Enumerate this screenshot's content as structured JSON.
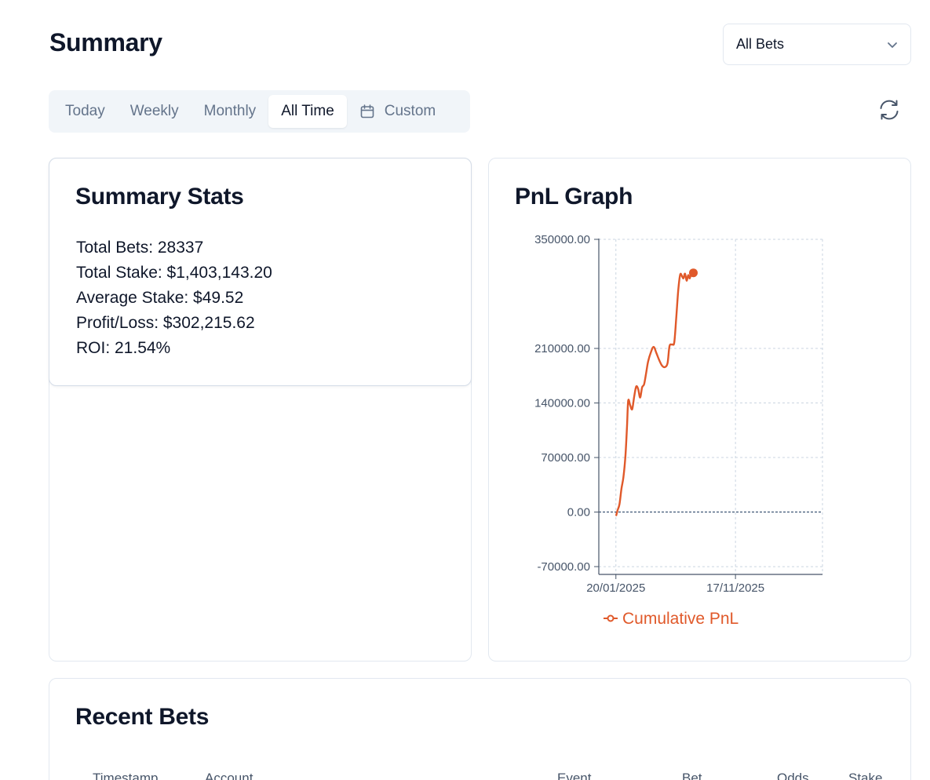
{
  "header": {
    "title": "Summary",
    "filter": {
      "selected": "All Bets"
    }
  },
  "tabs": [
    {
      "label": "Today",
      "active": false
    },
    {
      "label": "Weekly",
      "active": false
    },
    {
      "label": "Monthly",
      "active": false
    },
    {
      "label": "All Time",
      "active": true
    },
    {
      "label": "Custom",
      "active": false,
      "icon": "calendar-icon"
    }
  ],
  "refresh": {
    "icon": "refresh-icon"
  },
  "summary_stats": {
    "title": "Summary Stats",
    "lines": [
      "Total Bets: 28337",
      "Total Stake: $1,403,143.20",
      "Average Stake: $49.52",
      "Profit/Loss: $302,215.62",
      "ROI: 21.54%"
    ]
  },
  "pnl_graph": {
    "title": "PnL Graph"
  },
  "recent_bets": {
    "title": "Recent Bets",
    "columns": [
      "Timestamp",
      "Account",
      "Event",
      "Bet",
      "Odds",
      "Stake"
    ]
  },
  "colors": {
    "accent": "#e0592a",
    "text": "#0f172a",
    "muted": "#64748b",
    "border": "#e2e8f0",
    "tab_bg": "#f1f5f9"
  },
  "chart_data": {
    "type": "line",
    "title": "",
    "xlabel": "",
    "ylabel": "",
    "ylim": [
      -80000,
      350000
    ],
    "yticks": [
      {
        "value": -70000,
        "label": "-70000.00"
      },
      {
        "value": 0,
        "label": "0.00"
      },
      {
        "value": 70000,
        "label": "70000.00"
      },
      {
        "value": 140000,
        "label": "140000.00"
      },
      {
        "value": 210000,
        "label": "210000.00"
      },
      {
        "value": 350000,
        "label": "350000.00"
      }
    ],
    "xlim": [
      "2024-12-08",
      "2026-06-24"
    ],
    "xticks": [
      {
        "value": "2025-01-20",
        "label": "20/01/2025"
      },
      {
        "value": "2025-11-17",
        "label": "17/11/2025"
      }
    ],
    "grid": true,
    "legend": "bottom",
    "series": [
      {
        "name": "Cumulative PnL",
        "color": "#e0592a",
        "points": [
          [
            "2025-01-21",
            -4000
          ],
          [
            "2025-01-24",
            2000
          ],
          [
            "2025-01-29",
            10000
          ],
          [
            "2025-02-03",
            30000
          ],
          [
            "2025-02-08",
            45000
          ],
          [
            "2025-02-13",
            72000
          ],
          [
            "2025-02-17",
            110000
          ],
          [
            "2025-02-20",
            143000
          ],
          [
            "2025-02-25",
            137000
          ],
          [
            "2025-03-02",
            132000
          ],
          [
            "2025-03-07",
            148000
          ],
          [
            "2025-03-12",
            161000
          ],
          [
            "2025-03-17",
            158000
          ],
          [
            "2025-03-22",
            147000
          ],
          [
            "2025-03-27",
            160000
          ],
          [
            "2025-04-01",
            164000
          ],
          [
            "2025-04-06",
            178000
          ],
          [
            "2025-04-11",
            193000
          ],
          [
            "2025-04-18",
            205000
          ],
          [
            "2025-04-25",
            212000
          ],
          [
            "2025-05-02",
            204000
          ],
          [
            "2025-05-09",
            195000
          ],
          [
            "2025-05-16",
            188000
          ],
          [
            "2025-05-23",
            186000
          ],
          [
            "2025-05-30",
            191000
          ],
          [
            "2025-06-04",
            213000
          ],
          [
            "2025-06-11",
            215000
          ],
          [
            "2025-06-16",
            218000
          ],
          [
            "2025-06-21",
            250000
          ],
          [
            "2025-06-26",
            285000
          ],
          [
            "2025-07-01",
            305000
          ],
          [
            "2025-07-06",
            302000
          ],
          [
            "2025-07-09",
            300000
          ],
          [
            "2025-07-13",
            306000
          ],
          [
            "2025-07-17",
            297000
          ],
          [
            "2025-07-21",
            304000
          ],
          [
            "2025-07-25",
            300000
          ],
          [
            "2025-07-29",
            309000
          ]
        ],
        "end_marker": [
          "2025-08-03",
          307000
        ]
      }
    ]
  }
}
